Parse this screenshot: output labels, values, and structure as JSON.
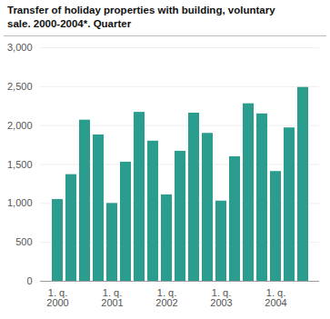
{
  "chart_data": {
    "type": "bar",
    "title": "Transfer of holiday properties with building, voluntary\nsale. 2000-2004*. Quarter",
    "categories": [
      "1. q.\n2000",
      null,
      null,
      null,
      "1. q.\n2001",
      null,
      null,
      null,
      "1. q.\n2002",
      null,
      null,
      null,
      "1. q.\n2003",
      null,
      null,
      null,
      "1. q.\n2004",
      null,
      null
    ],
    "values": [
      1050,
      1370,
      2070,
      1880,
      1000,
      1530,
      2170,
      1800,
      1110,
      1670,
      2160,
      1900,
      1030,
      1600,
      2280,
      2150,
      1410,
      1970,
      2490
    ],
    "color": "#2a9d8f",
    "ylim": [
      0,
      3000
    ],
    "yticks": [
      0,
      500,
      1000,
      1500,
      2000,
      2500,
      3000
    ],
    "grid": true
  }
}
